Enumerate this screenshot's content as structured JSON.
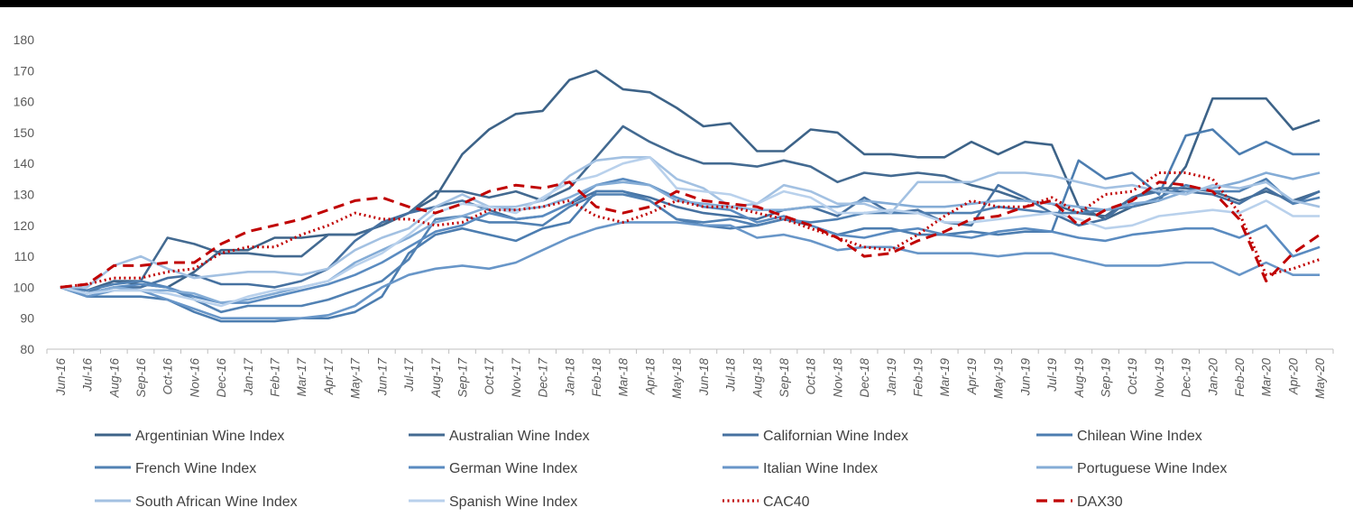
{
  "chart_data": {
    "type": "line",
    "ylim": [
      80,
      180
    ],
    "yticks": [
      "80",
      "90",
      "100",
      "110",
      "120",
      "130",
      "140",
      "150",
      "160",
      "170",
      "180"
    ],
    "grid": false,
    "legend_position": "bottom",
    "categories": [
      "Jun-16",
      "Jul-16",
      "Aug-16",
      "Sep-16",
      "Oct-16",
      "Nov-16",
      "Dec-16",
      "Jan-17",
      "Feb-17",
      "Mar-17",
      "Apr-17",
      "May-17",
      "Jun-17",
      "Jul-17",
      "Aug-17",
      "Sep-17",
      "Oct-17",
      "Nov-17",
      "Dec-17",
      "Jan-18",
      "Feb-18",
      "Mar-18",
      "Apr-18",
      "May-18",
      "Jun-18",
      "Jul-18",
      "Aug-18",
      "Sep-18",
      "Oct-18",
      "Nov-18",
      "Dec-18",
      "Jan-19",
      "Feb-19",
      "Mar-19",
      "Apr-19",
      "May-19",
      "Jun-19",
      "Jul-19",
      "Aug-19",
      "Sep-19",
      "Oct-19",
      "Nov-19",
      "Dec-19",
      "Jan-20",
      "Feb-20",
      "Mar-20",
      "Apr-20",
      "May-20"
    ],
    "series": [
      {
        "name": "Argentinian Wine Index",
        "color": "#3d6388",
        "dash": "solid",
        "values": [
          100,
          99,
          102,
          101,
          100,
          105,
          112,
          112,
          116,
          116,
          117,
          117,
          120,
          124,
          129,
          143,
          151,
          156,
          157,
          167,
          170,
          164,
          163,
          158,
          152,
          153,
          144,
          144,
          151,
          150,
          143,
          143,
          142,
          142,
          147,
          143,
          147,
          146,
          126,
          122,
          126,
          128,
          139,
          161,
          161,
          161,
          151,
          154
        ]
      },
      {
        "name": "Australian Wine Index",
        "color": "#436a91",
        "dash": "solid",
        "values": [
          100,
          98,
          102,
          102,
          116,
          114,
          111,
          111,
          110,
          110,
          117,
          117,
          120,
          124,
          131,
          131,
          129,
          131,
          128,
          132,
          142,
          152,
          147,
          143,
          140,
          140,
          139,
          141,
          139,
          134,
          137,
          136,
          137,
          136,
          133,
          131,
          128,
          127,
          124,
          123,
          129,
          132,
          132,
          131,
          128,
          131,
          128,
          131
        ]
      },
      {
        "name": "Californian Wine Index",
        "color": "#4671a0",
        "dash": "solid",
        "values": [
          100,
          98,
          100,
          100,
          103,
          104,
          101,
          101,
          100,
          102,
          106,
          115,
          121,
          124,
          126,
          128,
          125,
          122,
          123,
          127,
          131,
          131,
          129,
          126,
          124,
          123,
          122,
          125,
          126,
          123,
          129,
          124,
          125,
          121,
          120,
          133,
          129,
          124,
          120,
          122,
          129,
          131,
          131,
          130,
          127,
          132,
          127,
          131
        ]
      },
      {
        "name": "Chilean Wine Index",
        "color": "#4c7db0",
        "dash": "solid",
        "values": [
          100,
          97,
          97,
          97,
          96,
          92,
          89,
          89,
          89,
          90,
          90,
          92,
          97,
          111,
          117,
          119,
          117,
          115,
          119,
          121,
          131,
          131,
          128,
          122,
          120,
          119,
          120,
          122,
          120,
          117,
          119,
          119,
          117,
          117,
          118,
          117,
          118,
          118,
          141,
          135,
          137,
          130,
          149,
          151,
          143,
          147,
          143,
          143
        ]
      },
      {
        "name": "French Wine Index",
        "color": "#5181b3",
        "dash": "solid",
        "values": [
          100,
          99,
          101,
          102,
          100,
          96,
          92,
          94,
          94,
          94,
          96,
          99,
          102,
          109,
          122,
          123,
          121,
          121,
          120,
          126,
          130,
          130,
          128,
          122,
          121,
          122,
          120,
          122,
          121,
          122,
          124,
          124,
          124,
          124,
          124,
          126,
          125,
          124,
          124,
          125,
          126,
          129,
          133,
          131,
          131,
          135,
          127,
          129
        ]
      },
      {
        "name": "German Wine Index",
        "color": "#5a8bc0",
        "dash": "solid",
        "values": [
          100,
          98,
          100,
          101,
          100,
          97,
          95,
          95,
          97,
          99,
          101,
          104,
          108,
          113,
          118,
          120,
          124,
          122,
          123,
          127,
          133,
          135,
          133,
          129,
          126,
          125,
          121,
          123,
          120,
          117,
          116,
          118,
          119,
          117,
          116,
          118,
          119,
          118,
          116,
          115,
          117,
          118,
          119,
          119,
          116,
          120,
          110,
          113
        ]
      },
      {
        "name": "Italian Wine Index",
        "color": "#6896c8",
        "dash": "solid",
        "values": [
          100,
          97,
          99,
          99,
          96,
          93,
          90,
          90,
          90,
          90,
          91,
          94,
          100,
          104,
          106,
          107,
          106,
          108,
          112,
          116,
          119,
          121,
          121,
          121,
          120,
          120,
          116,
          117,
          115,
          112,
          113,
          113,
          111,
          111,
          111,
          110,
          111,
          111,
          109,
          107,
          107,
          107,
          108,
          108,
          104,
          108,
          104,
          104
        ]
      },
      {
        "name": "Portuguese Wine Index",
        "color": "#84acd6",
        "dash": "solid",
        "values": [
          100,
          98,
          100,
          99,
          99,
          98,
          95,
          96,
          98,
          100,
          102,
          108,
          112,
          116,
          121,
          123,
          126,
          125,
          126,
          129,
          133,
          134,
          133,
          128,
          127,
          126,
          125,
          125,
          126,
          126,
          128,
          127,
          126,
          126,
          127,
          128,
          128,
          127,
          126,
          125,
          127,
          128,
          131,
          132,
          134,
          137,
          135,
          137
        ]
      },
      {
        "name": "South African Wine Index",
        "color": "#a3c1e2",
        "dash": "solid",
        "values": [
          100,
          100,
          107,
          110,
          106,
          103,
          104,
          105,
          105,
          104,
          106,
          112,
          116,
          119,
          126,
          130,
          126,
          126,
          128,
          136,
          141,
          142,
          142,
          135,
          132,
          126,
          127,
          133,
          131,
          127,
          127,
          124,
          134,
          134,
          134,
          137,
          137,
          136,
          134,
          132,
          133,
          131,
          130,
          133,
          132,
          134,
          128,
          126
        ]
      },
      {
        "name": "Spanish Wine Index",
        "color": "#b9d1ec",
        "dash": "solid",
        "values": [
          100,
          98,
          99,
          99,
          98,
          96,
          94,
          97,
          99,
          100,
          102,
          107,
          111,
          117,
          124,
          127,
          126,
          124,
          129,
          134,
          136,
          140,
          142,
          132,
          131,
          130,
          127,
          131,
          129,
          124,
          124,
          125,
          124,
          121,
          121,
          122,
          123,
          124,
          122,
          119,
          120,
          123,
          124,
          125,
          124,
          128,
          123,
          123
        ]
      },
      {
        "name": "CAC40",
        "color": "#c00000",
        "dash": "dotted",
        "values": [
          100,
          101,
          103,
          103,
          105,
          106,
          111,
          113,
          113,
          117,
          120,
          124,
          122,
          122,
          120,
          121,
          125,
          125,
          126,
          128,
          123,
          121,
          124,
          128,
          126,
          126,
          124,
          122,
          119,
          116,
          113,
          112,
          117,
          123,
          128,
          126,
          126,
          129,
          124,
          130,
          131,
          137,
          137,
          135,
          124,
          104,
          106,
          109
        ]
      },
      {
        "name": "DAX30",
        "color": "#c00000",
        "dash": "dashed",
        "values": [
          100,
          101,
          107,
          107,
          108,
          108,
          114,
          118,
          120,
          122,
          125,
          128,
          129,
          126,
          124,
          127,
          131,
          133,
          132,
          134,
          126,
          124,
          126,
          131,
          128,
          127,
          126,
          123,
          120,
          116,
          110,
          111,
          115,
          118,
          122,
          123,
          126,
          128,
          120,
          125,
          128,
          134,
          133,
          131,
          122,
          102,
          111,
          117
        ]
      }
    ]
  }
}
